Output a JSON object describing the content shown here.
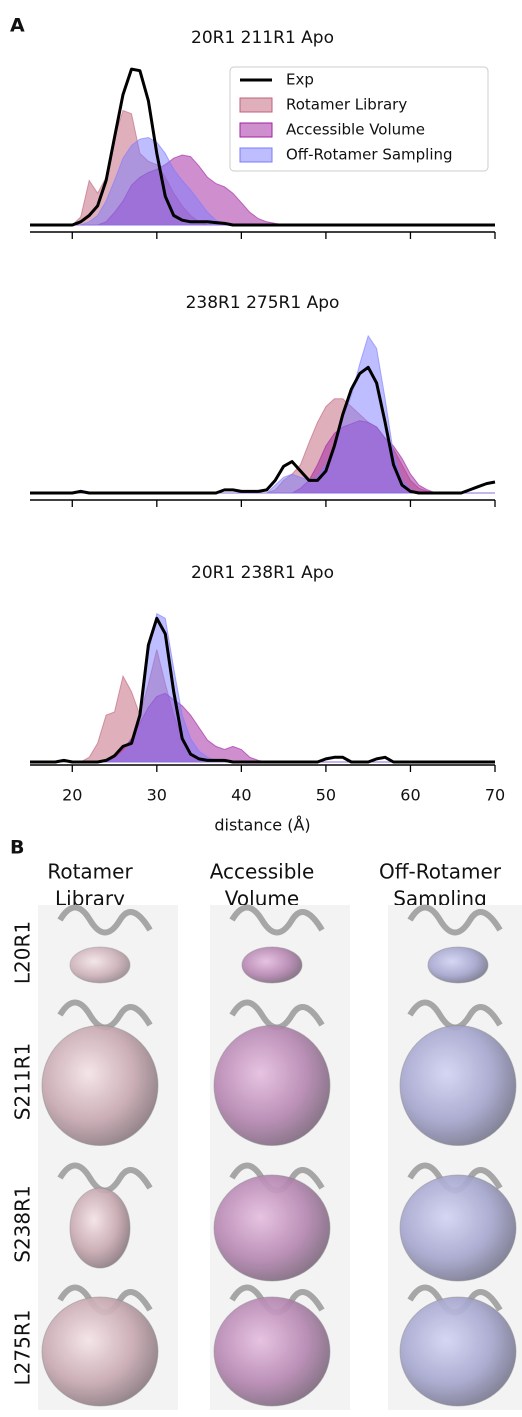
{
  "panel_labels": [
    "A",
    "B"
  ],
  "chart_data": [
    {
      "type": "area",
      "title": "20R1 211R1 Apo",
      "legend": "upper right",
      "xtick_labels": false,
      "fill_opacity": 0.5,
      "x": [
        15,
        16,
        17,
        18,
        19,
        20,
        21,
        22,
        23,
        24,
        25,
        26,
        27,
        28,
        29,
        30,
        31,
        32,
        33,
        34,
        35,
        36,
        37,
        38,
        39,
        40,
        41,
        42,
        43,
        44,
        45,
        46,
        47,
        48,
        49,
        50,
        51,
        52,
        53,
        54,
        55,
        56,
        57,
        58,
        59,
        60,
        61,
        62,
        63,
        64,
        65,
        66,
        67,
        68,
        69,
        70
      ],
      "xlim": [
        15,
        70
      ],
      "xticks": [
        20,
        30,
        40,
        50,
        60,
        70
      ],
      "ylim": [
        0,
        1.05
      ],
      "series": [
        {
          "name": "Exp",
          "kind": "line",
          "color": "#000000",
          "values": [
            0,
            0,
            0,
            0,
            0,
            0,
            0.02,
            0.06,
            0.12,
            0.28,
            0.55,
            0.82,
            0.98,
            0.97,
            0.78,
            0.45,
            0.18,
            0.06,
            0.03,
            0.02,
            0.02,
            0.02,
            0.015,
            0.01,
            0,
            0,
            0,
            0,
            0,
            0,
            0,
            0,
            0,
            0,
            0,
            0,
            0,
            0,
            0,
            0,
            0,
            0,
            0,
            0,
            0,
            0,
            0,
            0,
            0,
            0,
            0,
            0,
            0,
            0,
            0,
            0
          ]
        },
        {
          "name": "Rotamer Library",
          "kind": "area",
          "color": "#c0607a",
          "values": [
            0,
            0,
            0,
            0,
            0,
            0,
            0.05,
            0.28,
            0.2,
            0.3,
            0.55,
            0.72,
            0.7,
            0.45,
            0.4,
            0.38,
            0.3,
            0.2,
            0.12,
            0.06,
            0.02,
            0,
            0,
            0,
            0,
            0,
            0,
            0,
            0,
            0,
            0,
            0,
            0,
            0,
            0,
            0,
            0,
            0,
            0,
            0,
            0,
            0,
            0,
            0,
            0,
            0,
            0,
            0,
            0,
            0,
            0,
            0,
            0,
            0,
            0,
            0
          ]
        },
        {
          "name": "Accessible Volume",
          "kind": "area",
          "color": "#a020a0",
          "values": [
            0,
            0,
            0,
            0,
            0,
            0,
            0,
            0,
            0,
            0.02,
            0.08,
            0.15,
            0.25,
            0.3,
            0.33,
            0.35,
            0.38,
            0.42,
            0.44,
            0.43,
            0.37,
            0.3,
            0.26,
            0.24,
            0.2,
            0.14,
            0.08,
            0.04,
            0.02,
            0.01,
            0,
            0,
            0,
            0,
            0,
            0,
            0,
            0,
            0,
            0,
            0,
            0,
            0,
            0,
            0,
            0,
            0,
            0,
            0,
            0,
            0,
            0,
            0,
            0,
            0,
            0
          ]
        },
        {
          "name": "Off-Rotamer Sampling",
          "kind": "area",
          "color": "#7b7bff",
          "values": [
            0,
            0,
            0,
            0,
            0,
            0,
            0,
            0.02,
            0.06,
            0.15,
            0.28,
            0.42,
            0.5,
            0.54,
            0.55,
            0.52,
            0.45,
            0.35,
            0.28,
            0.22,
            0.15,
            0.08,
            0.03,
            0.01,
            0,
            0,
            0,
            0,
            0,
            0,
            0,
            0,
            0,
            0,
            0,
            0,
            0,
            0,
            0,
            0,
            0,
            0,
            0,
            0,
            0,
            0,
            0,
            0,
            0,
            0,
            0,
            0,
            0,
            0,
            0,
            0
          ]
        }
      ]
    },
    {
      "type": "area",
      "title": "238R1 275R1 Apo",
      "xtick_labels": false,
      "fill_opacity": 0.5,
      "x": [
        15,
        16,
        17,
        18,
        19,
        20,
        21,
        22,
        23,
        24,
        25,
        26,
        27,
        28,
        29,
        30,
        31,
        32,
        33,
        34,
        35,
        36,
        37,
        38,
        39,
        40,
        41,
        42,
        43,
        44,
        45,
        46,
        47,
        48,
        49,
        50,
        51,
        52,
        53,
        54,
        55,
        56,
        57,
        58,
        59,
        60,
        61,
        62,
        63,
        64,
        65,
        66,
        67,
        68,
        69,
        70
      ],
      "xlim": [
        15,
        70
      ],
      "xticks": [
        20,
        30,
        40,
        50,
        60,
        70
      ],
      "ylim": [
        0,
        1.05
      ],
      "series": [
        {
          "name": "Exp",
          "kind": "line",
          "color": "#000000",
          "values": [
            0,
            0,
            0,
            0,
            0,
            0,
            0.01,
            0,
            0,
            0,
            0,
            0,
            0,
            0,
            0,
            0,
            0,
            0,
            0,
            0,
            0,
            0,
            0,
            0.02,
            0.02,
            0.01,
            0.01,
            0.01,
            0.02,
            0.08,
            0.17,
            0.2,
            0.14,
            0.08,
            0.08,
            0.14,
            0.3,
            0.5,
            0.66,
            0.76,
            0.8,
            0.7,
            0.45,
            0.18,
            0.05,
            0.01,
            0,
            0,
            0,
            0,
            0,
            0,
            0.02,
            0.04,
            0.06,
            0.07
          ]
        },
        {
          "name": "Rotamer Library",
          "kind": "area",
          "color": "#c0607a",
          "values": [
            0,
            0,
            0,
            0,
            0,
            0,
            0,
            0,
            0,
            0,
            0,
            0,
            0,
            0,
            0,
            0,
            0,
            0,
            0,
            0,
            0,
            0,
            0,
            0,
            0,
            0,
            0,
            0,
            0,
            0.02,
            0.08,
            0.12,
            0.18,
            0.32,
            0.45,
            0.55,
            0.6,
            0.6,
            0.55,
            0.5,
            0.45,
            0.42,
            0.35,
            0.28,
            0.18,
            0.08,
            0.03,
            0.01,
            0,
            0,
            0,
            0,
            0,
            0,
            0,
            0
          ]
        },
        {
          "name": "Accessible Volume",
          "kind": "area",
          "color": "#a020a0",
          "values": [
            0,
            0,
            0,
            0,
            0,
            0,
            0,
            0,
            0,
            0,
            0,
            0,
            0,
            0,
            0,
            0,
            0,
            0,
            0,
            0,
            0,
            0,
            0,
            0,
            0,
            0,
            0,
            0,
            0,
            0,
            0,
            0,
            0.03,
            0.08,
            0.18,
            0.3,
            0.38,
            0.42,
            0.44,
            0.46,
            0.45,
            0.42,
            0.35,
            0.3,
            0.22,
            0.12,
            0.05,
            0.02,
            0,
            0,
            0,
            0,
            0,
            0,
            0,
            0
          ]
        },
        {
          "name": "Off-Rotamer Sampling",
          "kind": "area",
          "color": "#7b7bff",
          "values": [
            0,
            0,
            0,
            0,
            0,
            0,
            0,
            0,
            0,
            0,
            0,
            0,
            0,
            0,
            0,
            0,
            0,
            0,
            0,
            0,
            0,
            0,
            0,
            0,
            0,
            0,
            0,
            0,
            0,
            0.05,
            0.1,
            0.12,
            0.1,
            0.08,
            0.1,
            0.18,
            0.3,
            0.48,
            0.62,
            0.82,
            1.0,
            0.92,
            0.6,
            0.25,
            0.08,
            0.02,
            0,
            0,
            0,
            0,
            0,
            0,
            0,
            0,
            0,
            0
          ]
        }
      ]
    },
    {
      "type": "area",
      "title": "20R1 238R1 Apo",
      "xtick_labels": true,
      "xlabel": "distance (Å)",
      "fill_opacity": 0.5,
      "x": [
        15,
        16,
        17,
        18,
        19,
        20,
        21,
        22,
        23,
        24,
        25,
        26,
        27,
        28,
        29,
        30,
        31,
        32,
        33,
        34,
        35,
        36,
        37,
        38,
        39,
        40,
        41,
        42,
        43,
        44,
        45,
        46,
        47,
        48,
        49,
        50,
        51,
        52,
        53,
        54,
        55,
        56,
        57,
        58,
        59,
        60,
        61,
        62,
        63,
        64,
        65,
        66,
        67,
        68,
        69,
        70
      ],
      "xlim": [
        15,
        70
      ],
      "xticks": [
        20,
        30,
        40,
        50,
        60,
        70
      ],
      "ylim": [
        0,
        1.05
      ],
      "series": [
        {
          "name": "Exp",
          "kind": "line",
          "color": "#000000",
          "values": [
            0,
            0,
            0,
            0,
            0.01,
            0,
            0,
            0,
            0,
            0.01,
            0.04,
            0.1,
            0.12,
            0.3,
            0.75,
            0.92,
            0.82,
            0.45,
            0.15,
            0.05,
            0.02,
            0.01,
            0.01,
            0.01,
            0,
            0,
            0,
            0,
            0,
            0,
            0,
            0,
            0,
            0,
            0,
            0.02,
            0.03,
            0.03,
            0,
            0,
            0,
            0.02,
            0.03,
            0,
            0,
            0,
            0,
            0,
            0,
            0,
            0,
            0,
            0,
            0,
            0,
            0
          ]
        },
        {
          "name": "Rotamer Library",
          "kind": "area",
          "color": "#c0607a",
          "values": [
            0,
            0,
            0,
            0,
            0,
            0,
            0,
            0.03,
            0.12,
            0.3,
            0.32,
            0.55,
            0.45,
            0.3,
            0.5,
            0.72,
            0.5,
            0.3,
            0.15,
            0.06,
            0.02,
            0,
            0,
            0,
            0,
            0,
            0,
            0,
            0,
            0,
            0,
            0,
            0,
            0,
            0,
            0,
            0,
            0,
            0,
            0,
            0,
            0,
            0,
            0,
            0,
            0,
            0,
            0,
            0,
            0,
            0,
            0,
            0,
            0,
            0,
            0
          ]
        },
        {
          "name": "Accessible Volume",
          "kind": "area",
          "color": "#a020a0",
          "values": [
            0,
            0,
            0,
            0,
            0,
            0,
            0,
            0,
            0,
            0,
            0.03,
            0.08,
            0.15,
            0.25,
            0.35,
            0.42,
            0.44,
            0.4,
            0.36,
            0.3,
            0.22,
            0.14,
            0.1,
            0.08,
            0.1,
            0.08,
            0.03,
            0.01,
            0,
            0,
            0,
            0,
            0,
            0,
            0,
            0,
            0,
            0,
            0,
            0,
            0,
            0,
            0,
            0,
            0,
            0,
            0,
            0,
            0,
            0,
            0,
            0,
            0,
            0,
            0,
            0
          ]
        },
        {
          "name": "Off-Rotamer Sampling",
          "kind": "area",
          "color": "#7b7bff",
          "values": [
            0,
            0,
            0,
            0,
            0,
            0,
            0,
            0,
            0,
            0,
            0.02,
            0.06,
            0.12,
            0.3,
            0.7,
            0.95,
            0.92,
            0.6,
            0.3,
            0.15,
            0.07,
            0.03,
            0.01,
            0,
            0,
            0,
            0,
            0,
            0,
            0,
            0,
            0,
            0,
            0,
            0,
            0,
            0,
            0,
            0,
            0,
            0,
            0,
            0,
            0,
            0,
            0,
            0,
            0,
            0,
            0,
            0,
            0,
            0,
            0,
            0,
            0
          ]
        }
      ]
    }
  ],
  "panel_b": {
    "columns": [
      [
        "Rotamer",
        "Library"
      ],
      [
        "Accessible",
        "Volume"
      ],
      [
        "Off-Rotamer",
        "Sampling"
      ]
    ],
    "rows": [
      "L20R1",
      "S211R1",
      "S238R1",
      "L275R1"
    ]
  }
}
